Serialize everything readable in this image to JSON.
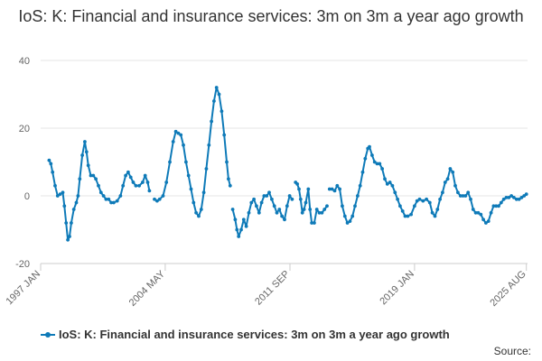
{
  "chart_data": {
    "type": "line",
    "title": "IoS: K: Financial and insurance services: 3m on 3m a year ago growth",
    "xlabel": "",
    "ylabel": "",
    "ylim": [
      -20,
      40
    ],
    "y_ticks": [
      40,
      20,
      0,
      -20
    ],
    "x_range": [
      1997.0,
      2025.65
    ],
    "x_ticks": [
      {
        "label": "1997 JAN",
        "x": 1997.0
      },
      {
        "label": "2004 MAY",
        "x": 2004.33
      },
      {
        "label": "2011 SEP",
        "x": 2011.67
      },
      {
        "label": "2019 JAN",
        "x": 2019.0
      },
      {
        "label": "2025 AUG",
        "x": 2025.58
      }
    ],
    "grid": true,
    "legend": "bottom-left",
    "series": [
      {
        "name": "IoS: K: Financial and insurance services: 3m on 3m a year ago growth",
        "color": "#0e7ab8",
        "segments": [
          [
            [
              1997.5,
              10.5
            ],
            [
              1997.6,
              9.5
            ],
            [
              1997.7,
              7
            ],
            [
              1997.85,
              3
            ],
            [
              1998.0,
              0
            ],
            [
              1998.15,
              0.5
            ],
            [
              1998.3,
              1
            ],
            [
              1998.4,
              -3
            ],
            [
              1998.5,
              -8
            ],
            [
              1998.6,
              -13
            ],
            [
              1998.7,
              -12
            ],
            [
              1998.8,
              -8
            ],
            [
              1998.95,
              -4
            ],
            [
              1999.1,
              -2
            ],
            [
              1999.2,
              0
            ],
            [
              1999.3,
              5
            ],
            [
              1999.45,
              12
            ],
            [
              1999.6,
              16
            ],
            [
              1999.7,
              13
            ],
            [
              1999.8,
              9
            ],
            [
              1999.95,
              6
            ],
            [
              2000.1,
              6
            ],
            [
              2000.25,
              5
            ],
            [
              2000.4,
              3
            ],
            [
              2000.55,
              1
            ],
            [
              2000.7,
              0
            ],
            [
              2000.85,
              -1
            ],
            [
              2001.0,
              -1
            ],
            [
              2001.15,
              -2
            ],
            [
              2001.3,
              -2
            ],
            [
              2001.5,
              -1.5
            ],
            [
              2001.7,
              0
            ],
            [
              2001.85,
              3
            ],
            [
              2002.0,
              6
            ],
            [
              2002.15,
              7
            ],
            [
              2002.3,
              5.5
            ],
            [
              2002.45,
              4
            ],
            [
              2002.6,
              3
            ],
            [
              2002.8,
              3
            ],
            [
              2003.0,
              4
            ],
            [
              2003.15,
              6
            ],
            [
              2003.3,
              4
            ],
            [
              2003.4,
              1.5
            ]
          ],
          [
            [
              2003.7,
              -1
            ],
            [
              2003.85,
              -1.5
            ],
            [
              2004.0,
              -1
            ],
            [
              2004.2,
              0
            ],
            [
              2004.4,
              4
            ],
            [
              2004.6,
              10
            ],
            [
              2004.8,
              16
            ],
            [
              2004.95,
              19
            ],
            [
              2005.1,
              18.5
            ],
            [
              2005.25,
              18
            ],
            [
              2005.4,
              15
            ],
            [
              2005.55,
              10
            ],
            [
              2005.7,
              6
            ],
            [
              2005.85,
              2
            ],
            [
              2006.0,
              -2
            ],
            [
              2006.15,
              -5
            ],
            [
              2006.3,
              -6
            ],
            [
              2006.45,
              -4
            ],
            [
              2006.6,
              1
            ],
            [
              2006.75,
              8
            ],
            [
              2006.9,
              15
            ],
            [
              2007.05,
              22
            ],
            [
              2007.2,
              28
            ],
            [
              2007.35,
              32
            ],
            [
              2007.5,
              30
            ],
            [
              2007.65,
              25
            ],
            [
              2007.8,
              18
            ],
            [
              2007.95,
              10
            ],
            [
              2008.05,
              5
            ],
            [
              2008.15,
              3
            ]
          ],
          [
            [
              2008.3,
              -4
            ],
            [
              2008.45,
              -7
            ],
            [
              2008.55,
              -10
            ],
            [
              2008.65,
              -12
            ],
            [
              2008.8,
              -10
            ],
            [
              2008.95,
              -7
            ],
            [
              2009.1,
              -9
            ],
            [
              2009.25,
              -5
            ],
            [
              2009.4,
              -2
            ],
            [
              2009.55,
              -1
            ],
            [
              2009.7,
              -3
            ],
            [
              2009.85,
              -5
            ],
            [
              2010.0,
              -2
            ],
            [
              2010.15,
              0
            ],
            [
              2010.3,
              0
            ],
            [
              2010.45,
              1
            ],
            [
              2010.6,
              -1
            ],
            [
              2010.75,
              -3
            ],
            [
              2010.9,
              -5
            ],
            [
              2011.05,
              -4
            ],
            [
              2011.2,
              -6
            ],
            [
              2011.35,
              -7
            ],
            [
              2011.5,
              -3
            ],
            [
              2011.65,
              0
            ],
            [
              2011.8,
              -1
            ]
          ],
          [
            [
              2012.0,
              4
            ],
            [
              2012.1,
              3.5
            ],
            [
              2012.2,
              2
            ],
            [
              2012.3,
              -1
            ],
            [
              2012.4,
              -5
            ],
            [
              2012.5,
              -4
            ],
            [
              2012.6,
              -2
            ],
            [
              2012.75,
              2
            ],
            [
              2012.85,
              -4
            ],
            [
              2012.95,
              -8
            ],
            [
              2013.1,
              -8
            ],
            [
              2013.25,
              -4
            ],
            [
              2013.4,
              -5
            ],
            [
              2013.55,
              -5
            ],
            [
              2013.7,
              -4
            ],
            [
              2013.85,
              -3
            ]
          ],
          [
            [
              2014.0,
              2
            ],
            [
              2014.15,
              2
            ],
            [
              2014.3,
              1.5
            ],
            [
              2014.45,
              3
            ],
            [
              2014.6,
              2
            ],
            [
              2014.75,
              -3
            ],
            [
              2014.9,
              -6
            ],
            [
              2015.05,
              -8
            ],
            [
              2015.2,
              -7.5
            ],
            [
              2015.35,
              -6
            ],
            [
              2015.5,
              -3
            ],
            [
              2015.65,
              0
            ],
            [
              2015.8,
              3
            ],
            [
              2015.95,
              7
            ],
            [
              2016.1,
              11
            ],
            [
              2016.25,
              14
            ],
            [
              2016.35,
              14.5
            ],
            [
              2016.5,
              12
            ],
            [
              2016.65,
              10
            ],
            [
              2016.8,
              9.5
            ],
            [
              2016.95,
              9.5
            ],
            [
              2017.1,
              8
            ],
            [
              2017.25,
              5
            ],
            [
              2017.4,
              3.5
            ],
            [
              2017.55,
              4
            ],
            [
              2017.7,
              3
            ],
            [
              2017.85,
              1
            ],
            [
              2018.0,
              -1
            ],
            [
              2018.15,
              -3
            ],
            [
              2018.3,
              -4.5
            ],
            [
              2018.45,
              -6
            ],
            [
              2018.6,
              -6
            ],
            [
              2018.8,
              -5.5
            ],
            [
              2019.0,
              -3
            ],
            [
              2019.15,
              -1.5
            ],
            [
              2019.3,
              -1
            ],
            [
              2019.5,
              -1.5
            ],
            [
              2019.7,
              -1
            ],
            [
              2019.9,
              -2
            ],
            [
              2020.05,
              -5
            ],
            [
              2020.2,
              -6
            ],
            [
              2020.35,
              -4
            ],
            [
              2020.5,
              -1
            ],
            [
              2020.65,
              1
            ],
            [
              2020.8,
              4
            ],
            [
              2020.95,
              5
            ],
            [
              2021.1,
              8
            ],
            [
              2021.25,
              7
            ],
            [
              2021.4,
              3
            ],
            [
              2021.55,
              1
            ],
            [
              2021.7,
              0
            ],
            [
              2021.85,
              0
            ],
            [
              2022.0,
              0
            ],
            [
              2022.15,
              1
            ],
            [
              2022.3,
              -1
            ],
            [
              2022.45,
              -4
            ],
            [
              2022.6,
              -5
            ],
            [
              2022.75,
              -5
            ],
            [
              2022.9,
              -5.5
            ],
            [
              2023.05,
              -7
            ],
            [
              2023.2,
              -8
            ],
            [
              2023.35,
              -7.5
            ],
            [
              2023.5,
              -5
            ],
            [
              2023.65,
              -3
            ],
            [
              2023.8,
              -3
            ],
            [
              2023.95,
              -3
            ],
            [
              2024.1,
              -2
            ],
            [
              2024.25,
              -1
            ],
            [
              2024.4,
              -0.5
            ],
            [
              2024.55,
              -0.5
            ],
            [
              2024.7,
              0
            ],
            [
              2024.85,
              -0.5
            ],
            [
              2025.0,
              -1
            ],
            [
              2025.15,
              -1
            ],
            [
              2025.3,
              -0.5
            ],
            [
              2025.45,
              0
            ],
            [
              2025.58,
              0.5
            ]
          ]
        ]
      }
    ],
    "legend_label": "IoS: K: Financial and insurance services: 3m on 3m a year ago growth",
    "source_label": "Source:"
  }
}
